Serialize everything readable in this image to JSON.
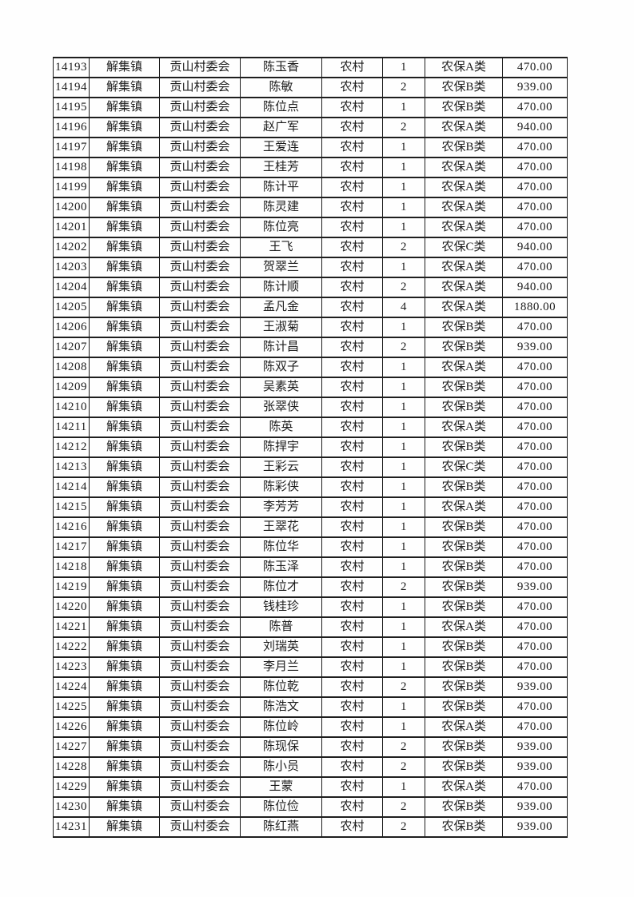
{
  "page": {
    "background_color": "#fefefe",
    "text_color": "#1c1c1c",
    "border_color": "#1e1e1e"
  },
  "table": {
    "column_keys": [
      "id",
      "town",
      "village",
      "name",
      "residence",
      "count",
      "insurance_class",
      "amount"
    ],
    "rows": [
      [
        "14193",
        "解集镇",
        "贡山村委会",
        "陈玉香",
        "农村",
        "1",
        "农保A类",
        "470.00"
      ],
      [
        "14194",
        "解集镇",
        "贡山村委会",
        "陈敏",
        "农村",
        "2",
        "农保B类",
        "939.00"
      ],
      [
        "14195",
        "解集镇",
        "贡山村委会",
        "陈位点",
        "农村",
        "1",
        "农保B类",
        "470.00"
      ],
      [
        "14196",
        "解集镇",
        "贡山村委会",
        "赵广军",
        "农村",
        "2",
        "农保A类",
        "940.00"
      ],
      [
        "14197",
        "解集镇",
        "贡山村委会",
        "王爱连",
        "农村",
        "1",
        "农保B类",
        "470.00"
      ],
      [
        "14198",
        "解集镇",
        "贡山村委会",
        "王桂芳",
        "农村",
        "1",
        "农保A类",
        "470.00"
      ],
      [
        "14199",
        "解集镇",
        "贡山村委会",
        "陈计平",
        "农村",
        "1",
        "农保A类",
        "470.00"
      ],
      [
        "14200",
        "解集镇",
        "贡山村委会",
        "陈灵建",
        "农村",
        "1",
        "农保A类",
        "470.00"
      ],
      [
        "14201",
        "解集镇",
        "贡山村委会",
        "陈位亮",
        "农村",
        "1",
        "农保A类",
        "470.00"
      ],
      [
        "14202",
        "解集镇",
        "贡山村委会",
        "王飞",
        "农村",
        "2",
        "农保C类",
        "940.00"
      ],
      [
        "14203",
        "解集镇",
        "贡山村委会",
        "贺翠兰",
        "农村",
        "1",
        "农保A类",
        "470.00"
      ],
      [
        "14204",
        "解集镇",
        "贡山村委会",
        "陈计顺",
        "农村",
        "2",
        "农保A类",
        "940.00"
      ],
      [
        "14205",
        "解集镇",
        "贡山村委会",
        "孟凡金",
        "农村",
        "4",
        "农保A类",
        "1880.00"
      ],
      [
        "14206",
        "解集镇",
        "贡山村委会",
        "王淑菊",
        "农村",
        "1",
        "农保B类",
        "470.00"
      ],
      [
        "14207",
        "解集镇",
        "贡山村委会",
        "陈计昌",
        "农村",
        "2",
        "农保B类",
        "939.00"
      ],
      [
        "14208",
        "解集镇",
        "贡山村委会",
        "陈双子",
        "农村",
        "1",
        "农保A类",
        "470.00"
      ],
      [
        "14209",
        "解集镇",
        "贡山村委会",
        "吴素英",
        "农村",
        "1",
        "农保B类",
        "470.00"
      ],
      [
        "14210",
        "解集镇",
        "贡山村委会",
        "张翠侠",
        "农村",
        "1",
        "农保B类",
        "470.00"
      ],
      [
        "14211",
        "解集镇",
        "贡山村委会",
        "陈英",
        "农村",
        "1",
        "农保A类",
        "470.00"
      ],
      [
        "14212",
        "解集镇",
        "贡山村委会",
        "陈捍宇",
        "农村",
        "1",
        "农保B类",
        "470.00"
      ],
      [
        "14213",
        "解集镇",
        "贡山村委会",
        "王彩云",
        "农村",
        "1",
        "农保C类",
        "470.00"
      ],
      [
        "14214",
        "解集镇",
        "贡山村委会",
        "陈彩侠",
        "农村",
        "1",
        "农保B类",
        "470.00"
      ],
      [
        "14215",
        "解集镇",
        "贡山村委会",
        "李芳芳",
        "农村",
        "1",
        "农保A类",
        "470.00"
      ],
      [
        "14216",
        "解集镇",
        "贡山村委会",
        "王翠花",
        "农村",
        "1",
        "农保B类",
        "470.00"
      ],
      [
        "14217",
        "解集镇",
        "贡山村委会",
        "陈位华",
        "农村",
        "1",
        "农保B类",
        "470.00"
      ],
      [
        "14218",
        "解集镇",
        "贡山村委会",
        "陈玉泽",
        "农村",
        "1",
        "农保B类",
        "470.00"
      ],
      [
        "14219",
        "解集镇",
        "贡山村委会",
        "陈位才",
        "农村",
        "2",
        "农保B类",
        "939.00"
      ],
      [
        "14220",
        "解集镇",
        "贡山村委会",
        "钱桂珍",
        "农村",
        "1",
        "农保B类",
        "470.00"
      ],
      [
        "14221",
        "解集镇",
        "贡山村委会",
        "陈普",
        "农村",
        "1",
        "农保A类",
        "470.00"
      ],
      [
        "14222",
        "解集镇",
        "贡山村委会",
        "刘瑞英",
        "农村",
        "1",
        "农保B类",
        "470.00"
      ],
      [
        "14223",
        "解集镇",
        "贡山村委会",
        "李月兰",
        "农村",
        "1",
        "农保B类",
        "470.00"
      ],
      [
        "14224",
        "解集镇",
        "贡山村委会",
        "陈位乾",
        "农村",
        "2",
        "农保B类",
        "939.00"
      ],
      [
        "14225",
        "解集镇",
        "贡山村委会",
        "陈浩文",
        "农村",
        "1",
        "农保B类",
        "470.00"
      ],
      [
        "14226",
        "解集镇",
        "贡山村委会",
        "陈位岭",
        "农村",
        "1",
        "农保A类",
        "470.00"
      ],
      [
        "14227",
        "解集镇",
        "贡山村委会",
        "陈现保",
        "农村",
        "2",
        "农保B类",
        "939.00"
      ],
      [
        "14228",
        "解集镇",
        "贡山村委会",
        "陈小员",
        "农村",
        "2",
        "农保B类",
        "939.00"
      ],
      [
        "14229",
        "解集镇",
        "贡山村委会",
        "王蒙",
        "农村",
        "1",
        "农保A类",
        "470.00"
      ],
      [
        "14230",
        "解集镇",
        "贡山村委会",
        "陈位俭",
        "农村",
        "2",
        "农保B类",
        "939.00"
      ],
      [
        "14231",
        "解集镇",
        "贡山村委会",
        "陈红燕",
        "农村",
        "2",
        "农保B类",
        "939.00"
      ]
    ]
  }
}
